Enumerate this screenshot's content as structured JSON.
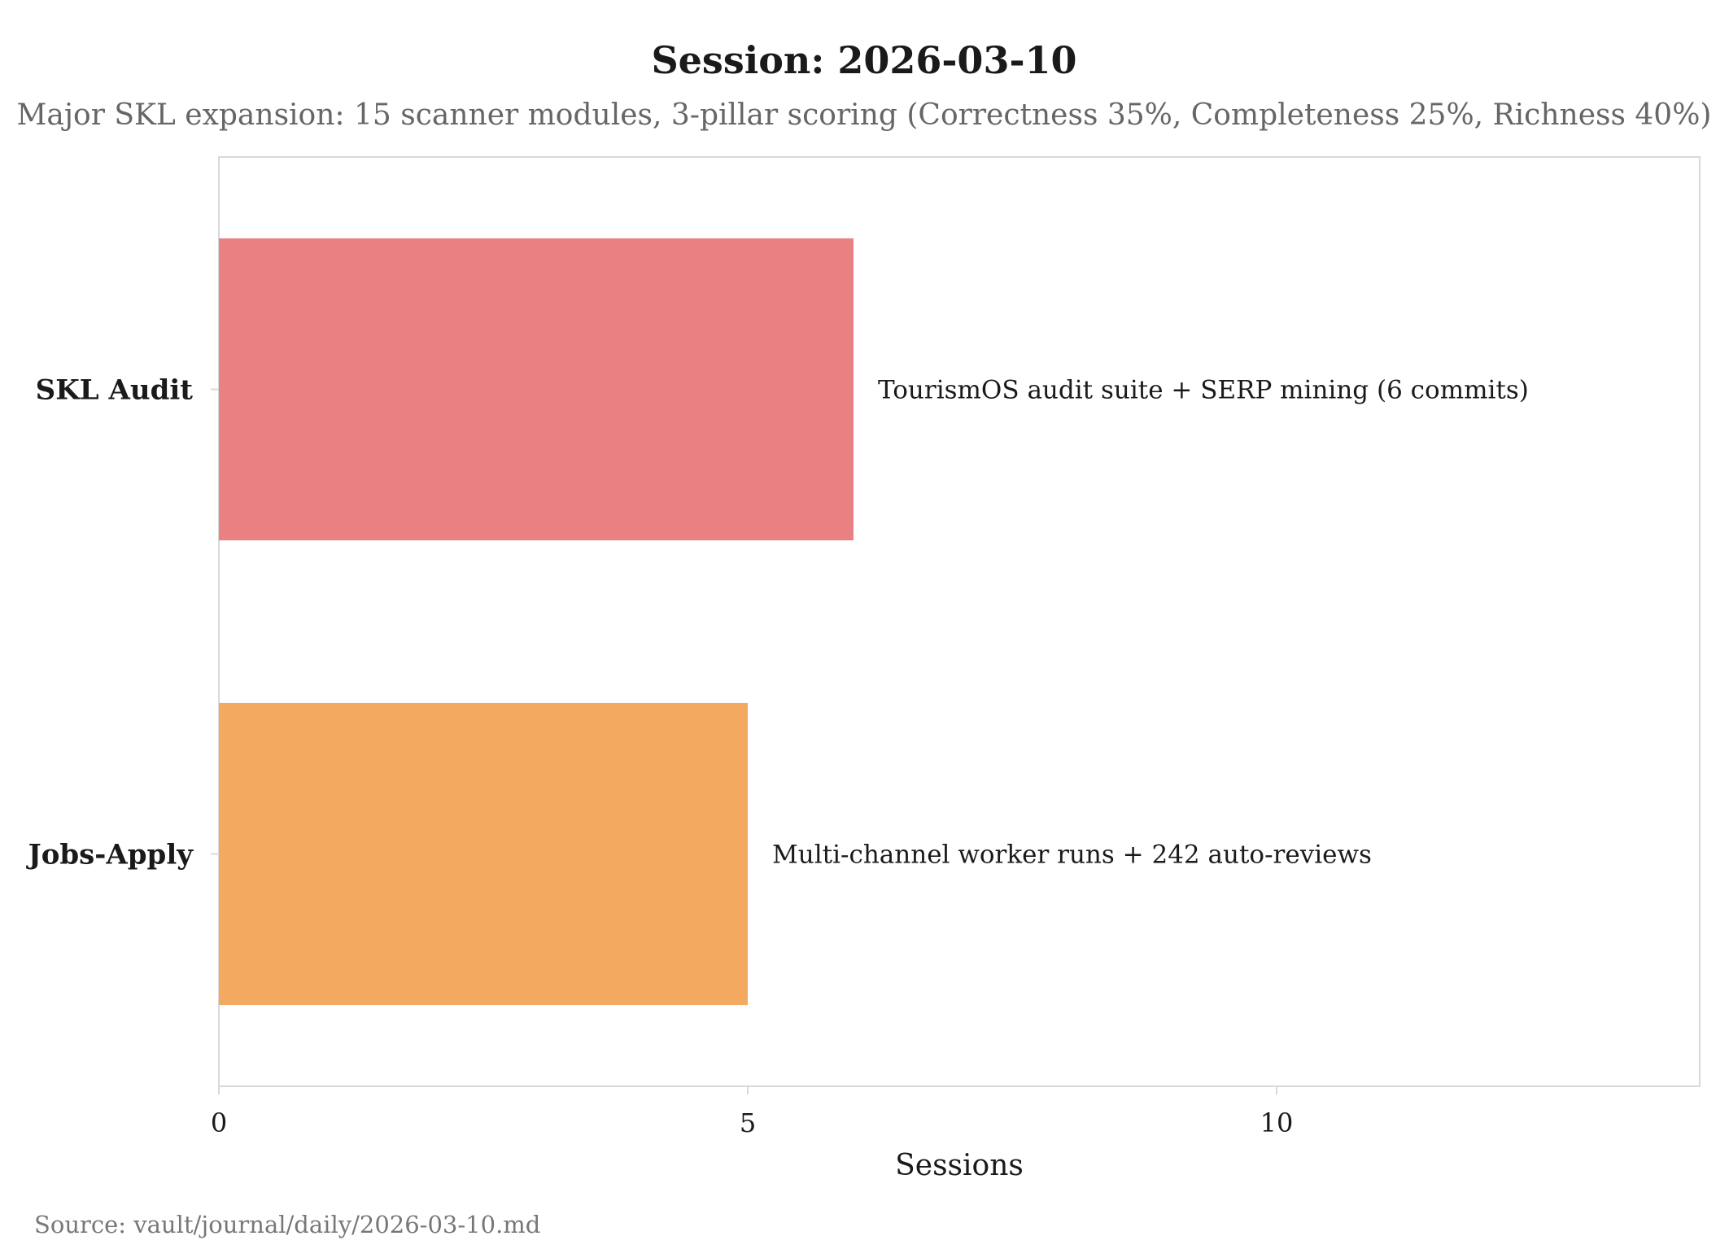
{
  "chart_data": {
    "type": "bar",
    "orientation": "horizontal",
    "title": "Session: 2026-03-10",
    "subtitle": "Major SKL expansion: 15 scanner modules, 3-pillar scoring (Correctness 35%, Completeness 25%, Richness 40%)",
    "categories": [
      "SKL Audit",
      "Jobs-Apply"
    ],
    "values": [
      6,
      5
    ],
    "colors": [
      "#e98082",
      "#f4a961"
    ],
    "annotations": [
      "TourismOS audit suite + SERP mining (6 commits)",
      "Multi-channel worker runs + 242 auto-reviews"
    ],
    "xlabel": "Sessions",
    "ylabel": "",
    "xlim": [
      0,
      14
    ],
    "xticks": [
      0,
      5,
      10
    ],
    "grid": false,
    "legend": "none",
    "source": "Source: vault/journal/daily/2026-03-10.md"
  }
}
